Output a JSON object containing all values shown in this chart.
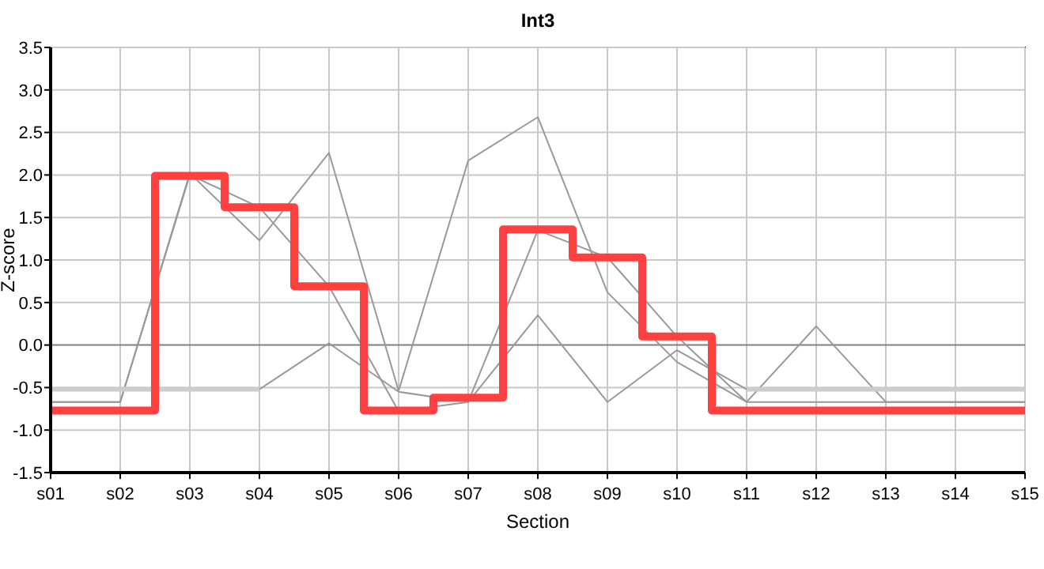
{
  "chart_data": {
    "type": "line",
    "title": "Int3",
    "xlabel": "Section",
    "ylabel": "Z-score",
    "categories": [
      "s01",
      "s02",
      "s03",
      "s04",
      "s05",
      "s06",
      "s07",
      "s08",
      "s09",
      "s10",
      "s11",
      "s12",
      "s13",
      "s14",
      "s15"
    ],
    "ylim": [
      -1.5,
      3.5
    ],
    "yticks": [
      {
        "value": -1.5,
        "label": "-1.5"
      },
      {
        "value": -1,
        "label": "-1.0"
      },
      -0.5,
      {
        "value": 0,
        "label": "0.0"
      },
      0.5,
      {
        "value": 1,
        "label": "1.0"
      },
      1.5,
      {
        "value": 2,
        "label": "2.0"
      },
      2.5,
      {
        "value": 3,
        "label": "3.0"
      },
      3.5
    ],
    "grid": true,
    "ref_lines": [
      {
        "axis": "y",
        "value": 0,
        "color": "#808080"
      }
    ],
    "series": [
      {
        "type": "line",
        "color": "#999999",
        "values": [
          -0.67,
          -0.67,
          2.02,
          1.23,
          2.26,
          -0.54,
          2.17,
          2.68,
          0.62,
          -0.2,
          -0.67,
          0.22,
          -0.67,
          -0.67,
          -0.67
        ]
      },
      {
        "type": "line",
        "color": "#999999",
        "values": [
          -0.67,
          -0.67,
          2.0,
          1.62,
          0.69,
          -0.78,
          -0.67,
          1.35,
          1.03,
          0.1,
          -0.67,
          -0.67,
          -0.67,
          -0.67,
          -0.67
        ]
      },
      {
        "type": "line",
        "color": "#999999",
        "values": [
          -0.52,
          -0.52,
          -0.52,
          -0.52,
          0.02,
          -0.55,
          -0.67,
          0.35,
          -0.67,
          -0.06,
          -0.52,
          -0.52,
          -0.52,
          -0.52,
          -0.52
        ]
      },
      {
        "type": "line",
        "color": "#cccccc",
        "values": [
          -0.52,
          -0.52,
          -0.52,
          -0.52,
          null,
          null,
          null,
          null,
          null,
          null,
          null,
          null,
          null,
          null,
          null
        ]
      },
      {
        "type": "line",
        "color": "#cccccc",
        "values": [
          null,
          null,
          null,
          null,
          null,
          null,
          null,
          null,
          null,
          null,
          -0.52,
          -0.52,
          -0.52,
          -0.52,
          -0.52
        ]
      },
      {
        "type": "step",
        "color": "#ff4040",
        "values": [
          -0.77,
          -0.77,
          1.99,
          1.62,
          0.69,
          -0.77,
          -0.62,
          1.36,
          1.03,
          0.1,
          -0.77,
          -0.77,
          -0.77,
          -0.77,
          -0.77
        ]
      }
    ]
  }
}
